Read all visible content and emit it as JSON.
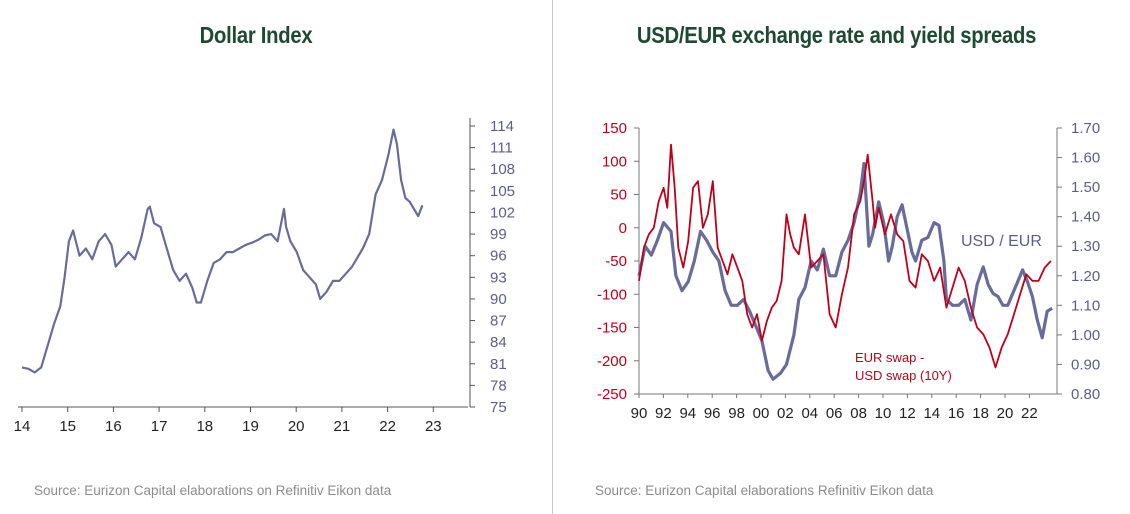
{
  "left": {
    "title": "Dollar Index",
    "source": "Source: Eurizon Capital elaborations on Refinitiv Eikon data"
  },
  "right": {
    "title": "USD/EUR exchange rate and yield spreads",
    "source": "Source: Eurizon Capital elaborations Refinitiv  Eikon data"
  },
  "colors": {
    "title": "#1d4a30",
    "usd_series": "#676c9c",
    "swap_series": "#c0001b",
    "axis": "#5c6088",
    "left_axis_red": "#c0001b"
  },
  "chart_data": [
    {
      "type": "line",
      "title": "Dollar Index",
      "x_ticks": [
        "14",
        "15",
        "16",
        "17",
        "18",
        "19",
        "20",
        "21",
        "22",
        "23"
      ],
      "xlim": [
        2014,
        2024
      ],
      "y_ticks": [
        114,
        111,
        108,
        105,
        102,
        99,
        96,
        93,
        90,
        87,
        84,
        81,
        78,
        75
      ],
      "ylim": [
        75,
        114
      ],
      "y_axis_side": "right",
      "series": [
        {
          "x": [
            2014.0,
            2014.15,
            2014.3,
            2014.45,
            2014.6,
            2014.75,
            2014.9,
            2015.0,
            2015.1,
            2015.2,
            2015.35,
            2015.5,
            2015.65,
            2015.8,
            2015.95,
            2016.1,
            2016.2,
            2016.35,
            2016.5,
            2016.65,
            2016.8,
            2016.95,
            2017.0,
            2017.1,
            2017.25,
            2017.4,
            2017.55,
            2017.7,
            2017.85,
            2018.0,
            2018.1,
            2018.2,
            2018.35,
            2018.5,
            2018.65,
            2018.8,
            2018.95,
            2019.1,
            2019.25,
            2019.4,
            2019.55,
            2019.7,
            2019.85,
            2020.0,
            2020.15,
            2020.2,
            2020.3,
            2020.45,
            2020.6,
            2020.75,
            2020.9,
            2021.0,
            2021.15,
            2021.3,
            2021.45,
            2021.6,
            2021.75,
            2021.9,
            2022.0,
            2022.15,
            2022.3,
            2022.45,
            2022.6,
            2022.72,
            2022.8,
            2022.9,
            2023.0,
            2023.1,
            2023.2,
            2023.3,
            2023.4
          ],
          "values": [
            80.5,
            80.3,
            79.8,
            80.5,
            83.5,
            86.5,
            89.0,
            93.0,
            98.0,
            99.5,
            96.0,
            97.0,
            95.5,
            98.0,
            99.0,
            97.5,
            94.5,
            95.5,
            96.5,
            95.5,
            98.5,
            102.5,
            102.8,
            100.5,
            100.0,
            97.0,
            94.0,
            92.5,
            93.5,
            91.5,
            89.5,
            89.5,
            92.5,
            95.0,
            95.5,
            96.5,
            96.5,
            97.0,
            97.5,
            97.8,
            98.2,
            98.8,
            99.0,
            98.0,
            102.5,
            100.0,
            98.0,
            96.5,
            94.0,
            93.0,
            92.0,
            90.0,
            91.0,
            92.5,
            92.5,
            93.5,
            94.5,
            96.0,
            97.0,
            99.0,
            104.5,
            106.5,
            110.0,
            113.5,
            111.5,
            106.5,
            104.0,
            103.5,
            102.5,
            101.5,
            103.0
          ],
          "name": ""
        }
      ]
    },
    {
      "type": "line",
      "title": "USD/EUR exchange rate and yield spreads",
      "x_ticks": [
        "90",
        "92",
        "94",
        "96",
        "98",
        "00",
        "02",
        "04",
        "06",
        "08",
        "10",
        "12",
        "14",
        "16",
        "18",
        "20",
        "22"
      ],
      "xlim": [
        1990,
        2024
      ],
      "left_axis": {
        "ticks": [
          150,
          100,
          50,
          0,
          -50,
          -100,
          -150,
          -200,
          -250
        ],
        "ylim": [
          -250,
          150
        ]
      },
      "right_axis": {
        "ticks": [
          "1.70",
          "1.60",
          "1.50",
          "1.40",
          "1.30",
          "1.20",
          "1.10",
          "1.00",
          "0.90",
          "0.80"
        ],
        "ylim": [
          0.8,
          1.7
        ]
      },
      "annotations": [
        {
          "text": "USD / EUR",
          "series": "USD / EUR"
        },
        {
          "text": "EUR swap -",
          "series": "EUR swap - USD swap (10Y)"
        },
        {
          "text": "USD swap (10Y)",
          "series": "EUR swap - USD swap (10Y)"
        }
      ],
      "series": [
        {
          "name": "USD / EUR",
          "axis": "right",
          "x": [
            1990.0,
            1990.5,
            1991.0,
            1991.5,
            1992.0,
            1992.6,
            1993.0,
            1993.5,
            1994.0,
            1994.5,
            1995.0,
            1995.5,
            1996.0,
            1996.5,
            1997.0,
            1997.5,
            1998.0,
            1998.5,
            1999.0,
            1999.5,
            2000.0,
            2000.5,
            2000.9,
            2001.5,
            2002.0,
            2002.6,
            2003.0,
            2003.5,
            2004.0,
            2004.5,
            2005.0,
            2005.5,
            2006.0,
            2006.5,
            2007.0,
            2007.5,
            2008.0,
            2008.3,
            2008.7,
            2009.0,
            2009.5,
            2009.9,
            2010.3,
            2010.6,
            2011.0,
            2011.4,
            2011.8,
            2012.2,
            2012.5,
            2013.0,
            2013.5,
            2014.0,
            2014.4,
            2014.8,
            2015.0,
            2015.5,
            2016.0,
            2016.5,
            2017.0,
            2017.5,
            2018.0,
            2018.4,
            2018.8,
            2019.2,
            2019.6,
            2020.0,
            2020.4,
            2020.8,
            2021.2,
            2021.6,
            2022.0,
            2022.4,
            2022.8,
            2023.2,
            2023.6
          ],
          "values": [
            1.2,
            1.3,
            1.27,
            1.32,
            1.38,
            1.35,
            1.2,
            1.15,
            1.18,
            1.25,
            1.35,
            1.32,
            1.28,
            1.25,
            1.15,
            1.1,
            1.1,
            1.12,
            1.08,
            1.03,
            0.98,
            0.88,
            0.85,
            0.87,
            0.9,
            1.0,
            1.12,
            1.16,
            1.25,
            1.22,
            1.29,
            1.2,
            1.2,
            1.28,
            1.32,
            1.38,
            1.48,
            1.58,
            1.3,
            1.34,
            1.45,
            1.38,
            1.25,
            1.3,
            1.4,
            1.44,
            1.36,
            1.28,
            1.25,
            1.32,
            1.33,
            1.38,
            1.37,
            1.25,
            1.12,
            1.1,
            1.1,
            1.12,
            1.05,
            1.17,
            1.23,
            1.17,
            1.14,
            1.13,
            1.1,
            1.1,
            1.14,
            1.18,
            1.22,
            1.18,
            1.13,
            1.05,
            0.99,
            1.08,
            1.09
          ]
        },
        {
          "name": "EUR swap - USD swap (10Y)",
          "axis": "left",
          "x": [
            1990.0,
            1990.4,
            1990.8,
            1991.2,
            1991.6,
            1992.0,
            1992.3,
            1992.6,
            1992.9,
            1993.2,
            1993.6,
            1994.0,
            1994.4,
            1994.8,
            1995.2,
            1995.6,
            1996.0,
            1996.4,
            1996.8,
            1997.2,
            1997.6,
            1998.0,
            1998.4,
            1998.8,
            1999.2,
            1999.6,
            2000.0,
            2000.4,
            2000.8,
            2001.2,
            2001.6,
            2002.0,
            2002.3,
            2002.6,
            2003.0,
            2003.5,
            2004.0,
            2004.5,
            2005.0,
            2005.5,
            2006.0,
            2006.5,
            2007.0,
            2007.5,
            2008.0,
            2008.3,
            2008.6,
            2009.0,
            2009.2,
            2009.5,
            2010.0,
            2010.5,
            2011.0,
            2011.5,
            2012.0,
            2012.5,
            2013.0,
            2013.5,
            2014.0,
            2014.5,
            2015.0,
            2015.5,
            2016.0,
            2016.5,
            2017.0,
            2017.5,
            2018.0,
            2018.5,
            2019.0,
            2019.5,
            2020.0,
            2020.5,
            2021.0,
            2021.5,
            2022.0,
            2022.5,
            2023.0,
            2023.5
          ],
          "values": [
            -80,
            -30,
            -10,
            0,
            40,
            60,
            30,
            125,
            60,
            -30,
            -60,
            -20,
            60,
            70,
            0,
            20,
            70,
            -30,
            -50,
            -70,
            -40,
            -60,
            -80,
            -130,
            -150,
            -130,
            -170,
            -140,
            -120,
            -110,
            -80,
            20,
            -10,
            -30,
            -40,
            20,
            -60,
            -50,
            -40,
            -130,
            -150,
            -100,
            -60,
            20,
            40,
            70,
            110,
            40,
            0,
            30,
            -10,
            20,
            -10,
            -20,
            -80,
            -90,
            -40,
            -50,
            -80,
            -60,
            -120,
            -90,
            -60,
            -80,
            -120,
            -150,
            -160,
            -180,
            -210,
            -180,
            -160,
            -130,
            -100,
            -70,
            -80,
            -80,
            -60,
            -50
          ]
        }
      ]
    }
  ]
}
